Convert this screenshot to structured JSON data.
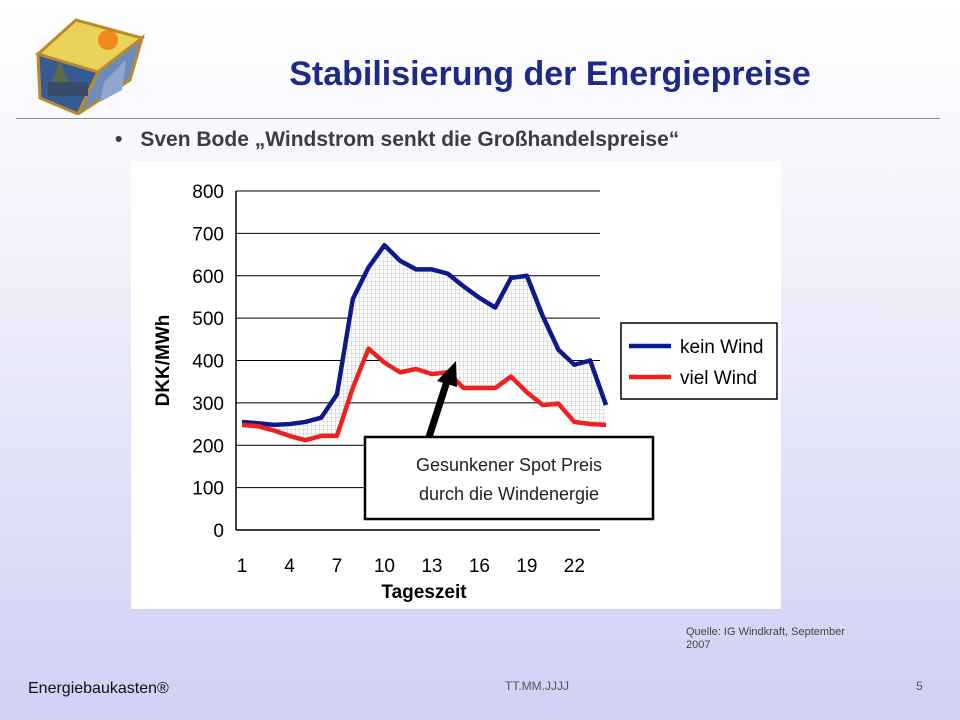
{
  "slide": {
    "title": "Stabilisierung der Energiepreise",
    "bullet_symbol": "•",
    "bullet_text": "Sven Bode „Windstrom senkt die Großhandelspreise“",
    "source": "Quelle: IG Windkraft, September 2007",
    "brand": "Energiebaukasten®",
    "date_placeholder": "TT.MM.JJJJ",
    "page_number": "5"
  },
  "chart_data": {
    "type": "line",
    "ylabel": "DKK/MWh",
    "xlabel": "Tageszeit",
    "ylim": [
      0,
      800
    ],
    "yticks": [
      0,
      100,
      200,
      300,
      400,
      500,
      600,
      700,
      800
    ],
    "xticks": [
      1,
      4,
      7,
      10,
      13,
      16,
      19,
      22
    ],
    "xlim": [
      1,
      24
    ],
    "grid": true,
    "legend_position": "right",
    "x": [
      1,
      2,
      3,
      4,
      5,
      6,
      7,
      8,
      9,
      10,
      11,
      12,
      13,
      14,
      15,
      16,
      17,
      18,
      19,
      20,
      21,
      22,
      23,
      24
    ],
    "series": [
      {
        "name": "kein Wind",
        "color": "#0c1a8c",
        "values": [
          255,
          252,
          248,
          250,
          255,
          265,
          320,
          545,
          620,
          672,
          635,
          615,
          615,
          605,
          575,
          548,
          525,
          595,
          600,
          505,
          425,
          390,
          400,
          295
        ]
      },
      {
        "name": "viel Wind",
        "color": "#ef2020",
        "values": [
          248,
          245,
          235,
          222,
          212,
          222,
          222,
          335,
          428,
          395,
          372,
          380,
          368,
          372,
          335,
          335,
          335,
          362,
          325,
          295,
          298,
          255,
          250,
          248
        ]
      }
    ],
    "annotation": {
      "text_line1": "Gesunkener Spot Preis",
      "text_line2": "durch die Windenergie"
    }
  },
  "colors": {
    "title": "#1d2a86",
    "shaded_area": "#c8c8c8"
  }
}
